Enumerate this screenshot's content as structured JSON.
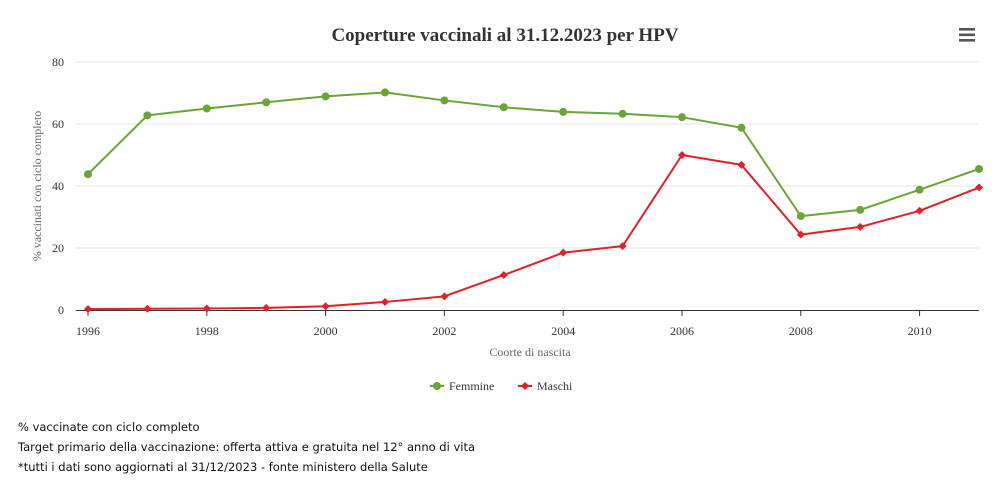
{
  "chart_data": {
    "type": "line",
    "title": "Coperture vaccinali al 31.12.2023 per HPV",
    "xlabel": "Coorte di nascita",
    "ylabel": "% vaccinati con ciclo completo",
    "x": [
      1996,
      1997,
      1998,
      1999,
      2000,
      2001,
      2002,
      2003,
      2004,
      2005,
      2006,
      2007,
      2008,
      2009,
      2010,
      2011
    ],
    "xlim": [
      1996,
      2011
    ],
    "ylim": [
      0,
      80
    ],
    "x_ticks": [
      1996,
      1998,
      2000,
      2002,
      2004,
      2006,
      2008,
      2010
    ],
    "y_ticks": [
      0,
      20,
      40,
      60,
      80
    ],
    "grid": true,
    "legend_position": "bottom-center",
    "series": [
      {
        "name": "Femmine",
        "color": "#6aa535",
        "marker": "circle",
        "values": [
          43.8,
          62.8,
          65.0,
          67.0,
          68.9,
          70.2,
          67.6,
          65.4,
          63.9,
          63.3,
          62.2,
          58.8,
          30.3,
          32.3,
          38.8,
          45.5
        ]
      },
      {
        "name": "Maschi",
        "color": "#e3202a",
        "marker": "diamond",
        "values": [
          0.3,
          0.4,
          0.5,
          0.7,
          1.2,
          2.6,
          4.4,
          11.3,
          18.5,
          20.6,
          50.0,
          46.8,
          24.3,
          26.8,
          32.0,
          39.5
        ]
      }
    ]
  },
  "notes": [
    "% vaccinate con ciclo completo",
    "Target primario della vaccinazione: offerta attiva e gratuita nel 12° anno di vita",
    "*tutti i dati sono aggiornati al 31/12/2023 - fonte ministero della Salute"
  ],
  "menu": {
    "icon": "hamburger-menu-icon"
  }
}
